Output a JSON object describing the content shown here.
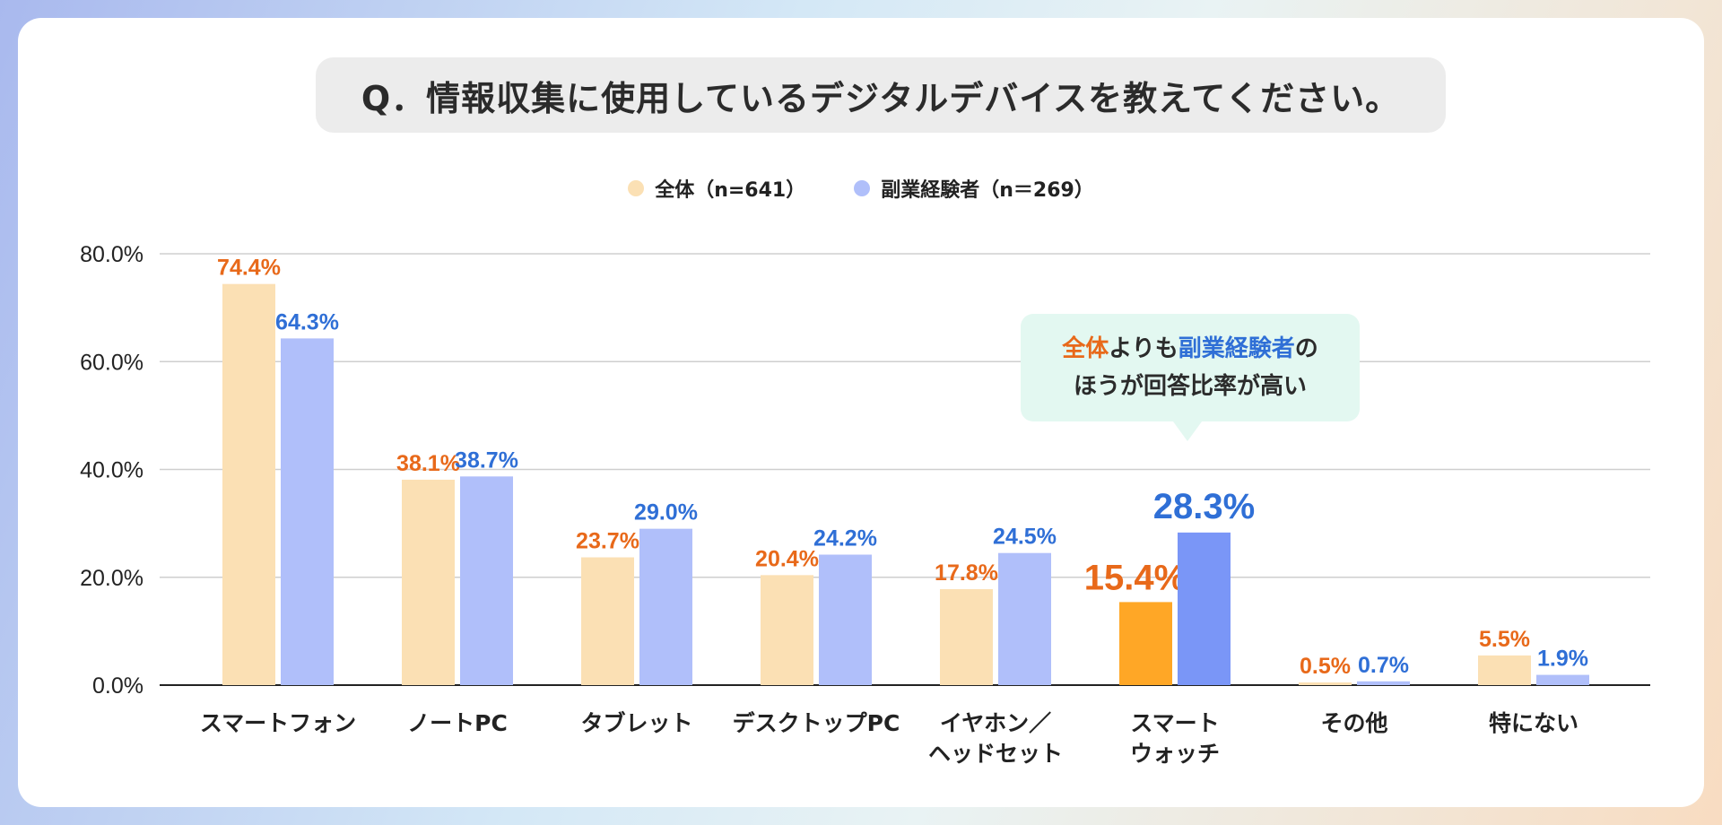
{
  "title": "Q．情報収集に使用しているデジタルデバイスを教えてください。",
  "legend": {
    "overall": "全体（n=641）",
    "side": "副業経験者（n＝269）"
  },
  "callout": {
    "part1": "全体",
    "part2": "よりも",
    "part3": "副業経験者",
    "part4": "の",
    "line2": "ほうが回答比率が高い"
  },
  "colors": {
    "overall": "#fbe0b4",
    "side": "#b0bffa",
    "overall_highlight": "#ffa726",
    "side_highlight": "#7a96f7",
    "overall_label": "#e8691a",
    "side_label": "#2f6fd6"
  },
  "chart_data": {
    "type": "bar",
    "title": "Q．情報収集に使用しているデジタルデバイスを教えてください。",
    "categories": [
      "スマートフォン",
      "ノートPC",
      "タブレット",
      "デスクトップPC",
      "イヤホン／\nヘッドセット",
      "スマート\nウォッチ",
      "その他",
      "特にない"
    ],
    "series": [
      {
        "name": "全体（n=641）",
        "values": [
          74.4,
          38.1,
          23.7,
          20.4,
          17.8,
          15.4,
          0.5,
          5.5
        ]
      },
      {
        "name": "副業経験者（n＝269）",
        "values": [
          64.3,
          38.7,
          29.0,
          24.2,
          24.5,
          28.3,
          0.7,
          1.9
        ]
      }
    ],
    "highlight_category_index": 5,
    "yticks": [
      0,
      20,
      40,
      60,
      80
    ],
    "ytick_labels": [
      "0.0%",
      "20.0%",
      "40.0%",
      "60.0%",
      "80.0%"
    ],
    "ylim": [
      0,
      80
    ],
    "xlabel": "",
    "ylabel": "",
    "grid": true,
    "legend_position": "top-center"
  }
}
